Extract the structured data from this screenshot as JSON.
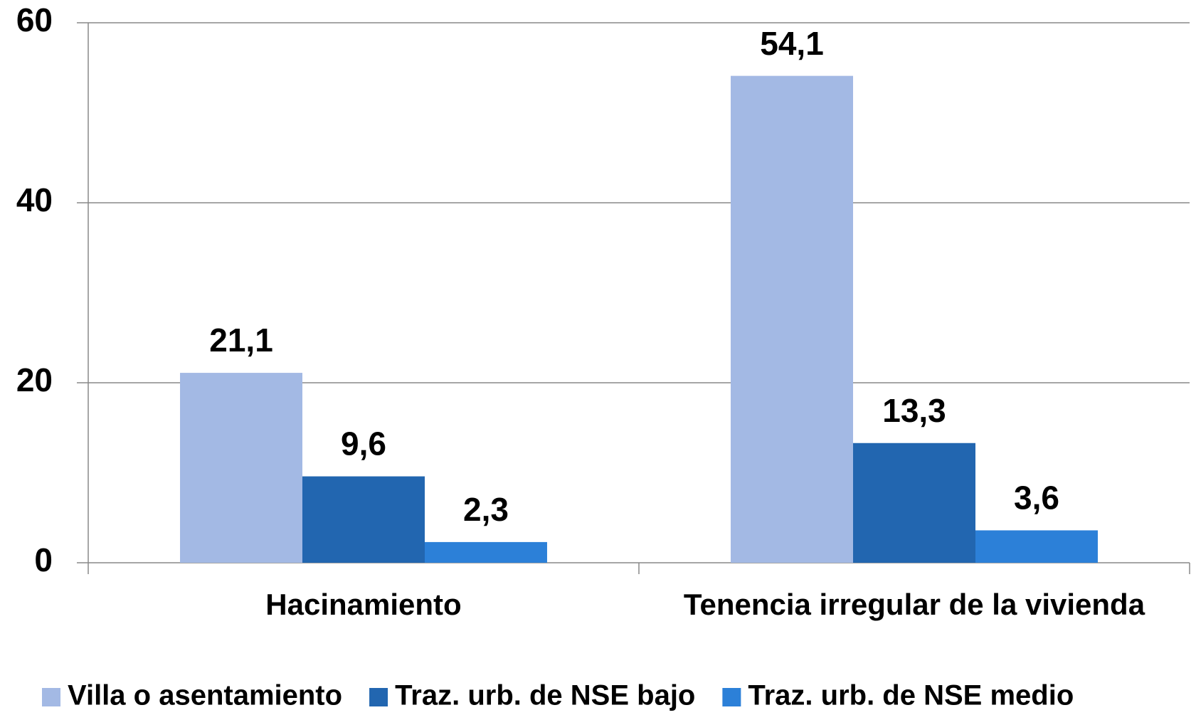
{
  "chart_data": {
    "type": "bar",
    "categories": [
      "Hacinamiento",
      "Tenencia irregular de la vivienda"
    ],
    "series": [
      {
        "name": "Villa o asentamiento",
        "color": "#a3b9e4",
        "values": [
          21.1,
          54.1
        ],
        "value_labels": [
          "21,1",
          "54,1"
        ]
      },
      {
        "name": "Traz. urb. de NSE bajo",
        "color": "#2266b0",
        "values": [
          9.6,
          13.3
        ],
        "value_labels": [
          "9,6",
          "13,3"
        ]
      },
      {
        "name": "Traz. urb. de NSE medio",
        "color": "#2c80d8",
        "values": [
          2.3,
          3.6
        ],
        "value_labels": [
          "2,3",
          "3,6"
        ]
      }
    ],
    "ylim": [
      0,
      60
    ],
    "yticks": [
      0,
      20,
      40,
      60
    ],
    "grid": true,
    "legend": "bottom"
  }
}
